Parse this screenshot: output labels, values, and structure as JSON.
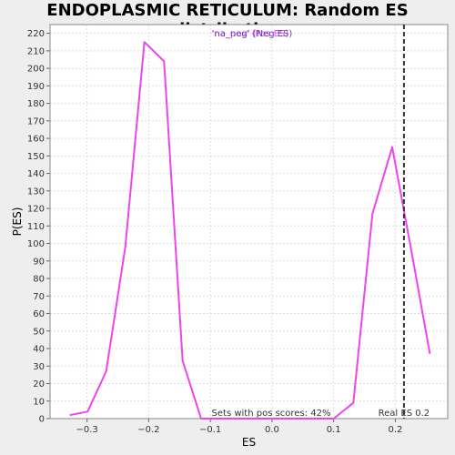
{
  "chart_data": {
    "type": "line",
    "title": "ENDOPLASMIC RETICULUM: Random ES distribution",
    "xlabel": "ES",
    "ylabel": "P(ES)",
    "xlim": [
      -0.36,
      0.285
    ],
    "ylim": [
      0,
      225
    ],
    "xticks": [
      -0.3,
      -0.2,
      -0.1,
      0.0,
      0.1,
      0.2
    ],
    "xtick_labels": [
      "−0.3",
      "−0.2",
      "−0.1",
      "0.0",
      "0.1",
      "0.2"
    ],
    "yticks": [
      0,
      10,
      20,
      30,
      40,
      50,
      60,
      70,
      80,
      90,
      100,
      110,
      120,
      130,
      140,
      150,
      160,
      170,
      180,
      190,
      200,
      210,
      220
    ],
    "grid": true,
    "series": [
      {
        "color": "#ee44ee",
        "x": [
          -0.328,
          -0.299,
          -0.269,
          -0.238,
          -0.207,
          -0.175,
          -0.145,
          -0.115,
          -0.085,
          -0.055,
          -0.025,
          0.005,
          0.035,
          0.065,
          0.1,
          0.132,
          0.163,
          0.195,
          0.225,
          0.256
        ],
        "y": [
          2,
          4,
          27,
          98,
          215,
          204,
          33,
          0,
          0,
          0,
          0,
          0,
          0,
          0,
          0,
          9,
          117,
          155,
          98,
          37
        ]
      }
    ],
    "real_es": 0.214,
    "real_es_label": "Real ES 0.2",
    "annotation": "Sets with pos scores: 42%",
    "legend": {
      "line1": "'na_pos' (Pos ES)",
      "line2": "'na_neg' (Neg ES)",
      "line1_color": "#ee44ee",
      "line2_color": "#6633cc",
      "placement": "top-center"
    }
  }
}
